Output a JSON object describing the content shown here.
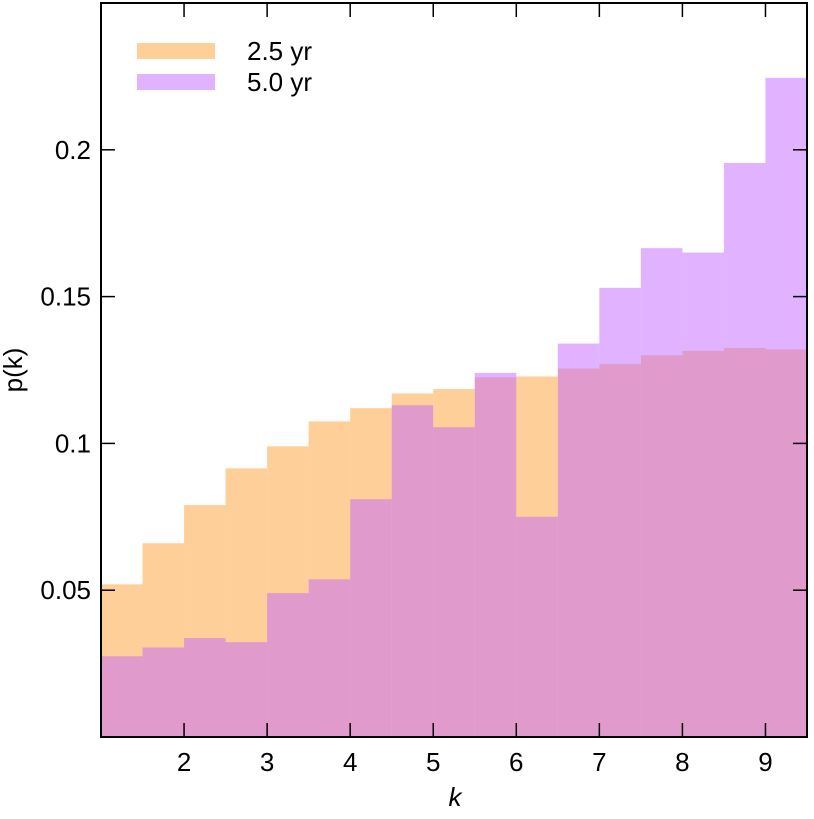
{
  "chart_data": {
    "type": "histogram",
    "xlabel": "k",
    "ylabel": "p(k)",
    "bins": [
      1,
      1.5,
      2,
      2.5,
      3,
      3.5,
      4,
      4.5,
      5,
      5.5,
      6,
      6.5,
      7,
      7.5,
      8,
      8.5,
      9,
      9.5
    ],
    "series": [
      {
        "name": "2.5 yr",
        "color": "#ff9f33",
        "values": [
          0.052,
          0.066,
          0.079,
          0.0915,
          0.099,
          0.1075,
          0.112,
          0.117,
          0.1185,
          0.1225,
          0.1228,
          0.1255,
          0.127,
          0.13,
          0.1315,
          0.1325,
          0.132
        ]
      },
      {
        "name": "5.0 yr",
        "color": "#c266ff",
        "values": [
          0.0275,
          0.0305,
          0.0337,
          0.0323,
          0.049,
          0.0537,
          0.081,
          0.113,
          0.1055,
          0.124,
          0.075,
          0.134,
          0.153,
          0.1665,
          0.165,
          0.1955,
          0.2245
        ]
      }
    ],
    "xlim": [
      1,
      9.5
    ],
    "ylim": [
      0,
      0.25
    ],
    "xticks": [
      2,
      3,
      4,
      5,
      6,
      7,
      8,
      9
    ],
    "yticks": [
      0.05,
      0.1,
      0.15,
      0.2
    ],
    "legend": "upper left"
  }
}
